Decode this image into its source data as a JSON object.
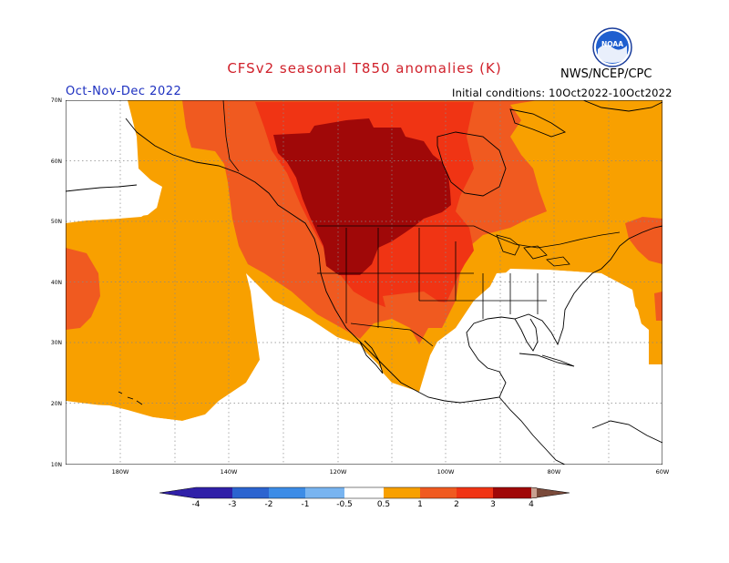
{
  "title": "CFSv2 seasonal T850 anomalies (K)",
  "season": "Oct-Nov-Dec 2022",
  "initial_conditions": "Initial conditions: 10Oct2022-10Oct2022",
  "agency": "NWS/NCEP/CPC",
  "logo_text": "NOAA",
  "colors": {
    "ocean": "#ffffff",
    "neutral": "#ffffff",
    "ge_0_5": "#f8a000",
    "ge_1": "#f05a20",
    "ge_2": "#f03414",
    "ge_3": "#a00808",
    "cool_1": "#78b4f0",
    "cool_2": "#3c8ce6",
    "cool_3": "#2c64d0",
    "cool_4": "#3020a8",
    "hot_4": "#c8a090",
    "hot_5": "#7a4a3a"
  },
  "map": {
    "lat_labels": [
      "70N",
      "60N",
      "50N",
      "40N",
      "30N",
      "20N",
      "10N"
    ],
    "lon_labels": [
      "180W",
      "140W",
      "120W",
      "100W",
      "80W",
      "60W"
    ]
  },
  "colorbar": {
    "tick_labels": [
      "-4",
      "-3",
      "-2",
      "-1",
      "-0.5",
      "0.5",
      "1",
      "2",
      "3",
      "4"
    ]
  }
}
